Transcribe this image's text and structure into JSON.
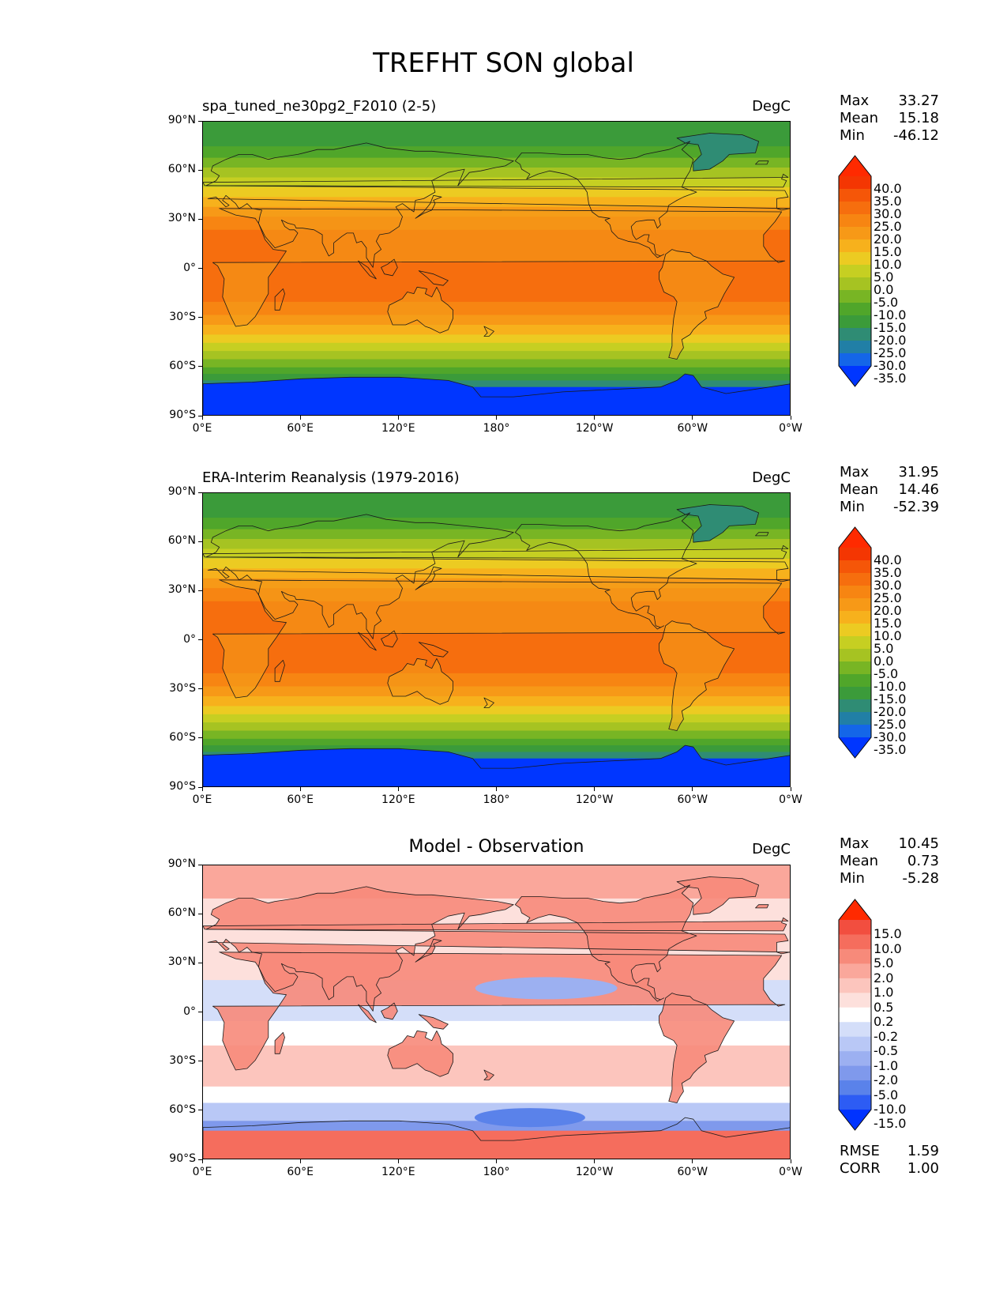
{
  "figure": {
    "title": "TREFHT SON global"
  },
  "colors": {
    "field_levels": [
      "#0036ff",
      "#1466e8",
      "#217fa6",
      "#2f8c74",
      "#3b9b3a",
      "#50a62a",
      "#78b524",
      "#a6c322",
      "#c6cf22",
      "#eccb22",
      "#f7b11c",
      "#f79917",
      "#f78512",
      "#f66e0e",
      "#f55608",
      "#f43602",
      "#ff2a00"
    ],
    "diff_levels": [
      "#0033ff",
      "#2d5cf4",
      "#5a82ea",
      "#7f99ec",
      "#9cb0f1",
      "#b9c8f6",
      "#d4def9",
      "#ffffff",
      "#fde0dc",
      "#fcc5bd",
      "#faa79b",
      "#f78a7a",
      "#f56d5d",
      "#f24e3f",
      "#ff2a00"
    ],
    "land": "#f4a11a"
  },
  "panels": [
    {
      "id": "test",
      "title": "spa_tuned_ne30pg2_F2010 (2-5)",
      "units": "DegC",
      "stats": [
        {
          "label": "Max",
          "value": "33.27"
        },
        {
          "label": "Mean",
          "value": "15.18"
        },
        {
          "label": "Min",
          "value": "-46.12"
        }
      ],
      "colorbar_labels": [
        "40.0",
        "35.0",
        "30.0",
        "25.0",
        "20.0",
        "15.0",
        "10.0",
        "5.0",
        "0.0",
        "-5.0",
        "-10.0",
        "-15.0",
        "-20.0",
        "-25.0",
        "-30.0",
        "-35.0"
      ]
    },
    {
      "id": "ref",
      "title": "ERA-Interim Reanalysis (1979-2016)",
      "units": "DegC",
      "stats": [
        {
          "label": "Max",
          "value": "31.95"
        },
        {
          "label": "Mean",
          "value": "14.46"
        },
        {
          "label": "Min",
          "value": "-52.39"
        }
      ],
      "colorbar_labels": [
        "40.0",
        "35.0",
        "30.0",
        "25.0",
        "20.0",
        "15.0",
        "10.0",
        "5.0",
        "0.0",
        "-5.0",
        "-10.0",
        "-15.0",
        "-20.0",
        "-25.0",
        "-30.0",
        "-35.0"
      ]
    },
    {
      "id": "diff",
      "title": "Model - Observation",
      "units": "DegC",
      "stats": [
        {
          "label": "Max",
          "value": "10.45"
        },
        {
          "label": "Mean",
          "value": "0.73"
        },
        {
          "label": "Min",
          "value": "-5.28"
        }
      ],
      "colorbar_labels": [
        "15.0",
        "10.0",
        "5.0",
        "2.0",
        "1.0",
        "0.5",
        "0.2",
        "-0.2",
        "-0.5",
        "-1.0",
        "-2.0",
        "-5.0",
        "-10.0",
        "-15.0"
      ],
      "extra_stats": [
        {
          "label": "RMSE",
          "value": "1.59"
        },
        {
          "label": "CORR",
          "value": "1.00"
        }
      ]
    }
  ],
  "axes": {
    "yticks": [
      "90°N",
      "60°N",
      "30°N",
      "0°",
      "30°S",
      "60°S",
      "90°S"
    ],
    "xticks": [
      "0°E",
      "60°E",
      "120°E",
      "180°",
      "120°W",
      "60°W",
      "0°W"
    ]
  }
}
